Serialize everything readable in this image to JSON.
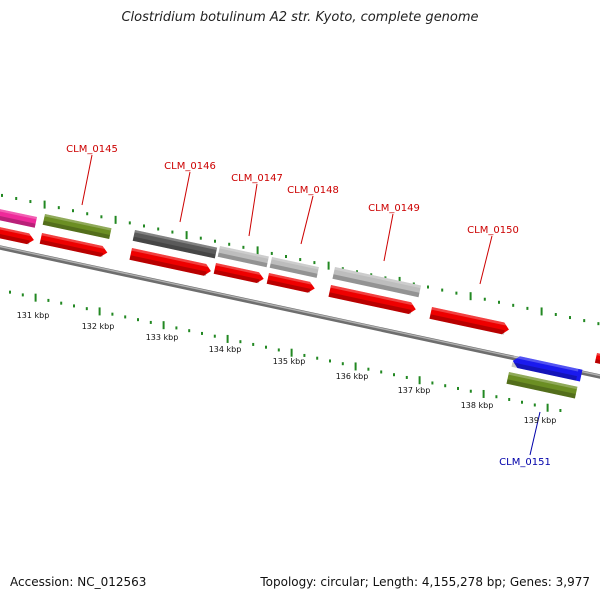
{
  "title": "Clostridium botulinum A2 str. Kyoto, complete genome",
  "footer": {
    "accession": "Accession: NC_012563",
    "summary": "Topology: circular; Length: 4,155,278 bp; Genes: 3,977"
  },
  "colors": {
    "cds_red": "#ee0000",
    "label_red": "#cc0000",
    "label_blue": "#0000aa",
    "backbone": "#8a8a8a",
    "tick_green": "#228822",
    "olive": "#6b8e23",
    "magenta": "#ee2a9a",
    "dark_gray": "#5a5a5a",
    "light_gray": "#bdbdbd",
    "blue": "#1a1aee"
  },
  "kbp_ticks": [
    "131 kbp",
    "132 kbp",
    "133 kbp",
    "134 kbp",
    "135 kbp",
    "136 kbp",
    "137 kbp",
    "138 kbp",
    "139 kbp"
  ],
  "gene_labels": [
    {
      "text": "CLM_0145",
      "color": "label_red"
    },
    {
      "text": "CLM_0146",
      "color": "label_red"
    },
    {
      "text": "CLM_0147",
      "color": "label_red"
    },
    {
      "text": "CLM_0148",
      "color": "label_red"
    },
    {
      "text": "CLM_0149",
      "color": "label_red"
    },
    {
      "text": "CLM_0150",
      "color": "label_red"
    },
    {
      "text": "CLM_0151",
      "color": "label_blue"
    }
  ]
}
